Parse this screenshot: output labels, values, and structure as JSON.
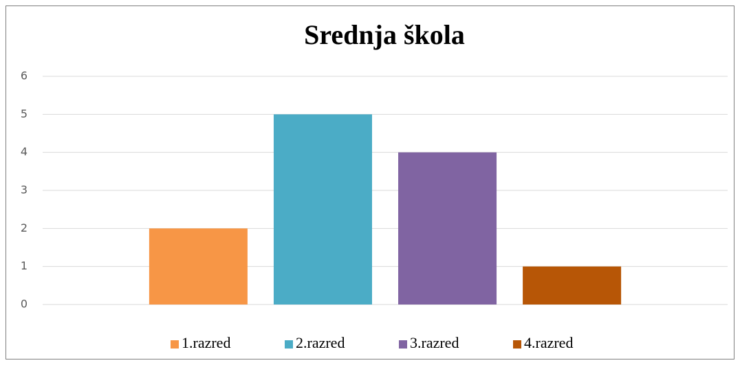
{
  "chart_data": {
    "type": "bar",
    "title": "Srednja škola",
    "categories": [
      null
    ],
    "series": [
      {
        "name": "1.razred",
        "color": "#f79646",
        "values": [
          2
        ]
      },
      {
        "name": "2.razred",
        "color": "#4bacc6",
        "values": [
          5
        ]
      },
      {
        "name": "3.razred",
        "color": "#8064a2",
        "values": [
          4
        ]
      },
      {
        "name": "4.razred",
        "color": "#b75606",
        "values": [
          1
        ]
      }
    ],
    "ylim": [
      0,
      6
    ],
    "yticks": [
      0,
      1,
      2,
      3,
      4,
      5,
      6
    ],
    "grid": true,
    "legend": "bottom"
  }
}
